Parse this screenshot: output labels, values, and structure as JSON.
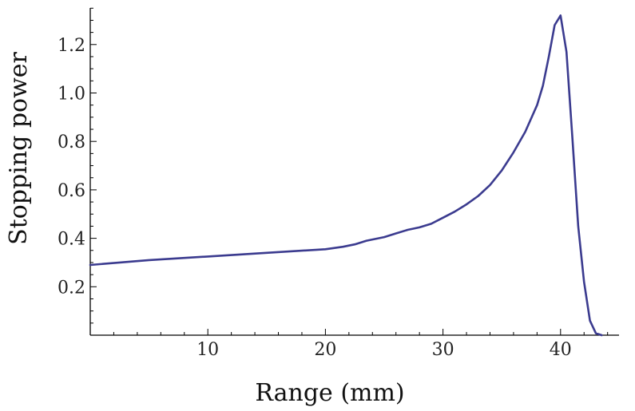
{
  "chart_data": {
    "type": "line",
    "title": "",
    "xlabel": "Range (mm)",
    "ylabel": "Stopping power",
    "xlim": [
      0,
      45
    ],
    "ylim": [
      0,
      1.35
    ],
    "x_ticks": [
      10,
      20,
      30,
      40
    ],
    "x_tick_labels": [
      "10",
      "20",
      "30",
      "40"
    ],
    "y_ticks": [
      0.2,
      0.4,
      0.6,
      0.8,
      1.0,
      1.2
    ],
    "y_tick_labels": [
      "0.2",
      "0.4",
      "0.6",
      "0.8",
      "1.0",
      "1.2"
    ],
    "grid": false,
    "line_color": "#3b3b8f",
    "series": [
      {
        "x": [
          0,
          5,
          10,
          15,
          20,
          21.5,
          22.5,
          23.5,
          25,
          26,
          27,
          28,
          29,
          30,
          31,
          32,
          33,
          34,
          35,
          36,
          37,
          38,
          38.5,
          39,
          39.5,
          40,
          40.5,
          41,
          41.5,
          42,
          42.5,
          43,
          43.5
        ],
        "y": [
          0.29,
          0.31,
          0.325,
          0.34,
          0.355,
          0.365,
          0.375,
          0.39,
          0.405,
          0.42,
          0.435,
          0.445,
          0.46,
          0.485,
          0.51,
          0.54,
          0.575,
          0.62,
          0.68,
          0.755,
          0.84,
          0.95,
          1.03,
          1.15,
          1.28,
          1.32,
          1.17,
          0.82,
          0.45,
          0.22,
          0.06,
          0.008,
          0.0
        ]
      }
    ]
  }
}
